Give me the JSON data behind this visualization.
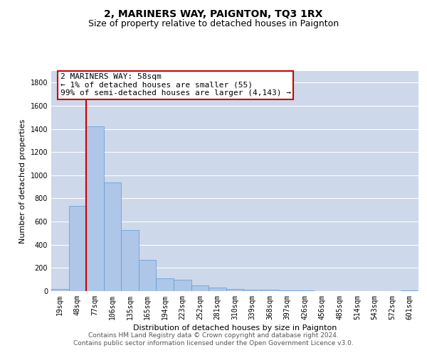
{
  "title": "2, MARINERS WAY, PAIGNTON, TQ3 1RX",
  "subtitle": "Size of property relative to detached houses in Paignton",
  "xlabel": "Distribution of detached houses by size in Paignton",
  "ylabel": "Number of detached properties",
  "categories": [
    "19sqm",
    "48sqm",
    "77sqm",
    "106sqm",
    "135sqm",
    "165sqm",
    "194sqm",
    "223sqm",
    "252sqm",
    "281sqm",
    "310sqm",
    "339sqm",
    "368sqm",
    "397sqm",
    "426sqm",
    "456sqm",
    "485sqm",
    "514sqm",
    "543sqm",
    "572sqm",
    "601sqm"
  ],
  "values": [
    20,
    735,
    1425,
    935,
    530,
    270,
    110,
    100,
    50,
    30,
    20,
    10,
    10,
    5,
    5,
    2,
    2,
    2,
    2,
    2,
    5
  ],
  "bar_color": "#aec6e8",
  "bar_edge_color": "#5b9bd5",
  "vline_color": "#cc0000",
  "annotation_text": "2 MARINERS WAY: 58sqm\n← 1% of detached houses are smaller (55)\n99% of semi-detached houses are larger (4,143) →",
  "annotation_box_color": "#ffffff",
  "annotation_box_edge_color": "#cc0000",
  "ylim": [
    0,
    1900
  ],
  "yticks": [
    0,
    200,
    400,
    600,
    800,
    1000,
    1200,
    1400,
    1600,
    1800
  ],
  "background_color": "#ffffff",
  "grid_color": "#cdd8ea",
  "footer_line1": "Contains HM Land Registry data © Crown copyright and database right 2024.",
  "footer_line2": "Contains public sector information licensed under the Open Government Licence v3.0.",
  "title_fontsize": 10,
  "subtitle_fontsize": 9,
  "axis_label_fontsize": 8,
  "tick_fontsize": 7,
  "annotation_fontsize": 8,
  "footer_fontsize": 6.5
}
